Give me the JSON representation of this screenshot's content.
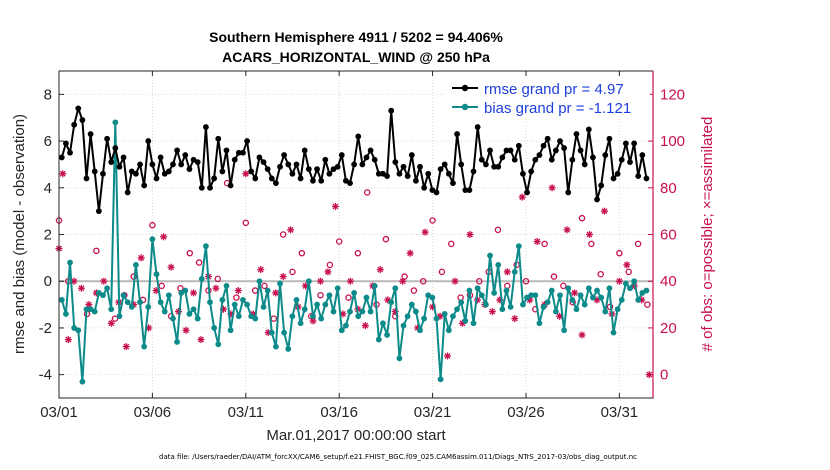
{
  "chart_data": {
    "type": "line",
    "title": [
      "Southern Hemisphere 4911 / 5202 = 94.406%",
      "ACARS_HORIZONTAL_WIND @ 250 hPa"
    ],
    "xlabel": "Mar.01,2017 00:00:00 start",
    "ylabel_left": "rmse and bias (model - observation)",
    "ylabel_right": "# of obs: o=possible; ×=assimilated",
    "xlim": [
      0,
      31.8
    ],
    "ylim_left": [
      -5,
      9
    ],
    "ylim_right": [
      -10,
      130
    ],
    "x_tick_values": [
      0,
      5,
      10,
      15,
      20,
      25,
      30
    ],
    "x_tick_labels": [
      "03/01",
      "03/06",
      "03/11",
      "03/16",
      "03/21",
      "03/26",
      "03/31"
    ],
    "y_left_ticks": [
      -4,
      -2,
      0,
      2,
      4,
      6,
      8
    ],
    "y_right_ticks": [
      0,
      20,
      40,
      60,
      80,
      100,
      120
    ],
    "grid": true,
    "zero_line": 0,
    "legend_location": "top-right",
    "series": [
      {
        "name": "rmse grand pr = 4.97",
        "color": "#000000",
        "axis": "left",
        "values": [
          5.3,
          5.9,
          5.5,
          6.7,
          7.4,
          6.9,
          4.4,
          6.3,
          4.7,
          3.0,
          4.6,
          6.1,
          5.1,
          5.7,
          4.9,
          5.3,
          3.8,
          4.7,
          4.6,
          5.0,
          4.1,
          6.0,
          5.0,
          4.4,
          5.3,
          4.6,
          4.7,
          5.0,
          5.6,
          5.0,
          5.4,
          4.8,
          5.2,
          5.1,
          4.0,
          6.6,
          4.0,
          4.4,
          6.1,
          4.7,
          5.6,
          4.1,
          5.2,
          5.5,
          5.5,
          6.0,
          4.7,
          4.4,
          5.3,
          5.1,
          4.8,
          4.4,
          4.2,
          4.9,
          5.4,
          5.0,
          4.6,
          5.0,
          4.4,
          5.6,
          4.8,
          4.3,
          4.8,
          4.3,
          5.2,
          4.6,
          4.8,
          4.9,
          5.4,
          4.3,
          4.2,
          5.0,
          6.2,
          5.0,
          5.3,
          5.6,
          5.2,
          4.6,
          4.6,
          4.5,
          7.3,
          5.1,
          4.6,
          4.9,
          4.5,
          5.4,
          4.3,
          4.9,
          4.0,
          4.6,
          3.9,
          3.8,
          4.8,
          5.0,
          4.6,
          4.2,
          6.3,
          5.0,
          3.9,
          3.9,
          4.7,
          6.6,
          5.2,
          5.0,
          5.6,
          4.9,
          4.9,
          5.3,
          5.6,
          5.6,
          5.2,
          5.8,
          4.6,
          3.8,
          4.7,
          5.2,
          5.4,
          5.8,
          6.1,
          5.2,
          5.6,
          6.0,
          5.7,
          3.8,
          5.2,
          6.3,
          5.6,
          5.0,
          6.5,
          5.3,
          3.5,
          4.1,
          5.4,
          6.1,
          4.4,
          4.6,
          5.2,
          5.9,
          5.1,
          5.9,
          4.5,
          5.4,
          4.4
        ]
      },
      {
        "name": "bias grand pr = -1.121",
        "color": "#0d8a8a",
        "axis": "left",
        "values": [
          -0.8,
          -1.4,
          0.8,
          -2.0,
          -2.1,
          -4.3,
          -1.2,
          -1.2,
          -1.3,
          -0.5,
          -0.6,
          -0.3,
          -1.2,
          6.8,
          -1.5,
          -0.6,
          -0.9,
          -1.1,
          0.7,
          -0.9,
          -2.8,
          -1.1,
          1.8,
          0.3,
          -0.9,
          -1.3,
          -0.6,
          -1.6,
          -2.6,
          -0.5,
          -0.4,
          -1.4,
          -1.2,
          -1.6,
          0.1,
          1.5,
          -0.9,
          -2.0,
          -2.7,
          -0.8,
          -0.2,
          -2.1,
          -1.0,
          -1.5,
          -0.8,
          -1.0,
          -1.5,
          -1.6,
          0.0,
          -1.1,
          -0.4,
          -2.2,
          -2.8,
          -0.1,
          -2.2,
          -2.9,
          -1.5,
          -0.8,
          -1.8,
          -1.2,
          0.0,
          -1.5,
          -1.0,
          -1.6,
          -1.0,
          -0.6,
          -1.3,
          -0.3,
          -2.1,
          -1.9,
          -1.3,
          -0.5,
          -1.5,
          -1.3,
          -0.7,
          -1.3,
          -0.2,
          -2.5,
          -1.8,
          -2.3,
          -0.9,
          -0.3,
          -3.3,
          -1.9,
          -1.5,
          -1.0,
          -1.3,
          -2.1,
          -1.6,
          -0.6,
          -0.7,
          -1.6,
          -4.2,
          -1.4,
          -2.1,
          -1.5,
          -1.2,
          -0.9,
          -1.7,
          -0.4,
          -1.8,
          -0.3,
          -0.6,
          -1.0,
          1.1,
          -0.5,
          0.7,
          -1.2,
          -0.4,
          -1.1,
          0.4,
          1.5,
          -1.0,
          -0.7,
          -0.6,
          -0.6,
          -1.8,
          -1.1,
          -0.9,
          -0.4,
          -1.3,
          -0.6,
          -2.1,
          -0.3,
          -0.8,
          -1.2,
          -0.6,
          -1.0,
          -0.3,
          -0.7,
          -0.4,
          -0.7,
          -1.3,
          -0.3,
          -2.2,
          -1.2,
          -0.8,
          -0.1,
          -0.3,
          0.0,
          -0.8,
          -0.5,
          -0.4
        ]
      }
    ],
    "obs_possible": {
      "name": "possible",
      "marker": "o",
      "color": "#c8104f",
      "axis": "right",
      "x": [
        0.0,
        0.5,
        1.5,
        2.0,
        3.0,
        3.5,
        4.0,
        4.5,
        5.0,
        5.5,
        6.0,
        6.5,
        7.0,
        7.5,
        8.0,
        8.5,
        9.0,
        9.5,
        10.0,
        10.5,
        11.0,
        11.5,
        12.0,
        12.5,
        13.0,
        13.5,
        14.0,
        14.5,
        15.0,
        15.5,
        16.0,
        16.5,
        17.0,
        17.5,
        18.0,
        18.5,
        19.0,
        19.5,
        20.0,
        20.5,
        21.0,
        21.5,
        22.0,
        22.5,
        23.0,
        23.5,
        24.0,
        24.5,
        25.0,
        25.5,
        26.0,
        26.5,
        27.0,
        27.5,
        28.0,
        28.5,
        29.0,
        29.5,
        30.0,
        30.5,
        31.0,
        31.5
      ],
      "y": [
        66,
        40,
        26,
        53,
        24,
        34,
        42,
        32,
        64,
        38,
        25,
        37,
        52,
        48,
        36,
        41,
        82,
        33,
        65,
        36,
        38,
        24,
        60,
        44,
        52,
        25,
        34,
        47,
        57,
        33,
        52,
        78,
        30,
        58,
        25,
        42,
        36,
        40,
        66,
        44,
        56,
        33,
        34,
        40,
        44,
        62,
        38,
        47,
        40,
        28,
        56,
        42,
        38,
        31,
        67,
        56,
        43,
        29,
        52,
        44,
        56,
        30
      ]
    },
    "obs_assimilated": {
      "name": "assimilated",
      "marker": "x",
      "color": "#c8104f",
      "axis": "right",
      "x": [
        0.0,
        0.2,
        0.5,
        0.8,
        1.2,
        1.6,
        2.0,
        2.4,
        2.8,
        3.2,
        3.6,
        4.0,
        4.4,
        4.8,
        5.2,
        5.6,
        6.0,
        6.4,
        6.8,
        7.2,
        7.6,
        8.0,
        8.4,
        8.8,
        9.2,
        9.6,
        10.0,
        10.4,
        10.8,
        11.2,
        11.6,
        12.0,
        12.4,
        12.8,
        13.2,
        13.6,
        14.0,
        14.4,
        14.8,
        15.2,
        15.6,
        16.0,
        16.4,
        16.8,
        17.2,
        17.6,
        18.0,
        18.4,
        18.8,
        19.2,
        19.6,
        20.0,
        20.4,
        20.8,
        21.2,
        21.6,
        22.0,
        22.4,
        22.8,
        23.2,
        23.6,
        24.0,
        24.4,
        24.8,
        25.2,
        25.6,
        26.0,
        26.4,
        26.8,
        27.2,
        27.6,
        28.0,
        28.4,
        28.8,
        29.2,
        29.6,
        30.0,
        30.4,
        30.8,
        31.2,
        31.6
      ],
      "y": [
        54,
        86,
        15,
        40,
        37,
        30,
        35,
        40,
        22,
        31,
        12,
        30,
        50,
        20,
        36,
        59,
        46,
        27,
        19,
        35,
        15,
        42,
        37,
        28,
        26,
        36,
        86,
        26,
        45,
        18,
        35,
        42,
        62,
        29,
        38,
        23,
        40,
        44,
        72,
        26,
        40,
        28,
        21,
        38,
        45,
        32,
        27,
        40,
        52,
        20,
        61,
        29,
        25,
        8,
        40,
        22,
        60,
        32,
        30,
        27,
        32,
        44,
        24,
        76,
        32,
        57,
        30,
        80,
        25,
        62,
        35,
        17,
        60,
        32,
        70,
        26,
        40,
        47,
        38,
        32,
        0
      ]
    }
  },
  "footer": "data file: /Users/raeder/DAI/ATM_forcXX/CAM6_setup/f.e21.FHIST_BGC.f09_025.CAM6assim.011/Diags_NTrS_2017-03/obs_diag_output.nc"
}
